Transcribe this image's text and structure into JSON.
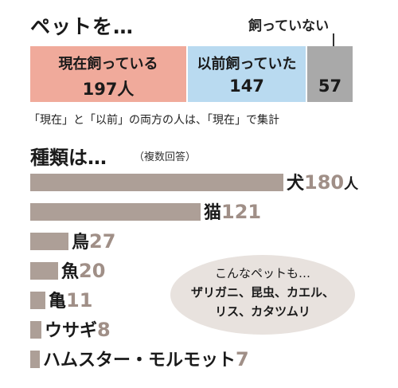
{
  "header": {
    "title": "ペットを…",
    "never_label": "飼っていない"
  },
  "ownership": {
    "segments": [
      {
        "label": "現在飼っている",
        "value": "197人",
        "color": "#f0aa9b"
      },
      {
        "label": "以前飼っていた",
        "value": "147",
        "color": "#b9daf0"
      },
      {
        "label": "",
        "value": "57",
        "color": "#a9a9a9"
      }
    ],
    "note": "「現在」と「以前」の両方の人は、「現在」で集計"
  },
  "types": {
    "title": "種類は…",
    "subtitle": "（複数回答）"
  },
  "chart_data": {
    "type": "bar",
    "orientation": "horizontal",
    "categories": [
      "犬",
      "猫",
      "鳥",
      "魚",
      "亀",
      "ウサギ",
      "ハムスター・モルモット"
    ],
    "values": [
      180,
      121,
      27,
      20,
      11,
      8,
      7
    ],
    "value_labels": [
      "180",
      "121",
      "27",
      "20",
      "11",
      "8",
      "7"
    ],
    "unit": "人",
    "bar_color": "#ad9f97"
  },
  "bubble": {
    "line1": "こんなペットも…",
    "line2": "ザリガニ、昆虫、カエル、",
    "line3": "リス、カタツムリ"
  }
}
